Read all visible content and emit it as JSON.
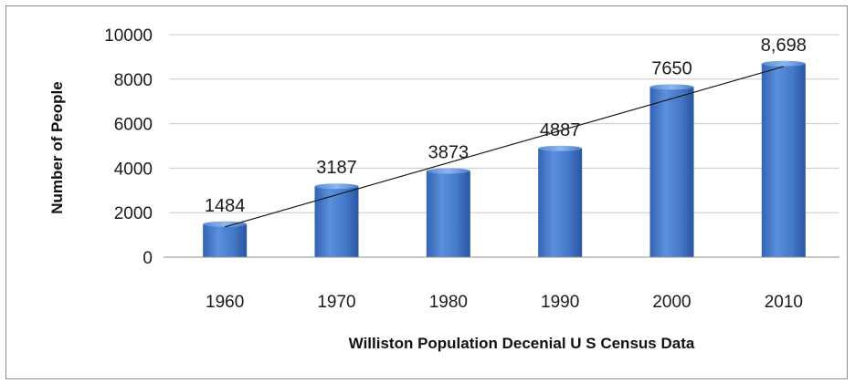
{
  "chart_data": {
    "type": "bar",
    "title": "",
    "xlabel": "Williston Population Decenial U S Census Data",
    "ylabel": "Number of People",
    "categories": [
      "1960",
      "1970",
      "1980",
      "1990",
      "2000",
      "2010"
    ],
    "values": [
      1484,
      3187,
      3873,
      4887,
      7650,
      8698
    ],
    "data_labels": [
      "1484",
      "3187",
      "3873",
      "4887",
      "7650",
      "8,698"
    ],
    "ylim": [
      0,
      10000
    ],
    "yticks": [
      0,
      2000,
      4000,
      6000,
      8000,
      10000
    ],
    "grid": true,
    "legend": "none",
    "trendline": "linear",
    "colors": {
      "bar": "#4a7fd0",
      "bar_dark": "#2b5aa6",
      "grid": "#c8c8c8",
      "trend": "#1a1a1a"
    }
  }
}
